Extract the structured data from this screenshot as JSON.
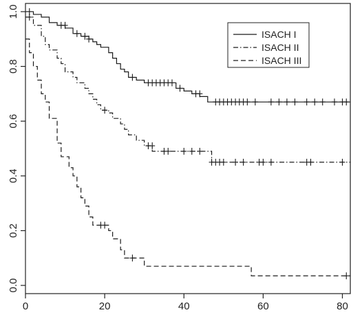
{
  "chart_data": {
    "type": "line",
    "subtype": "step",
    "title": "",
    "xlabel": "",
    "ylabel": "",
    "xlim": [
      0,
      82
    ],
    "ylim": [
      -0.03,
      1.03
    ],
    "x_ticks": [
      0,
      20,
      40,
      60,
      80
    ],
    "y_ticks": [
      0.0,
      0.2,
      0.4,
      0.6,
      0.8,
      1.0
    ],
    "x_tick_labels": [
      "0",
      "20",
      "40",
      "60",
      "80"
    ],
    "y_tick_labels": [
      "0.0",
      "0.2",
      "0.4",
      "0.6",
      "0.8",
      "1.0"
    ],
    "grid": false,
    "legend_position": "top-right",
    "series": [
      {
        "name": "ISACH I",
        "line_style": "solid",
        "steps": [
          [
            0,
            1.0
          ],
          [
            2,
            0.99
          ],
          [
            4,
            0.98
          ],
          [
            6,
            0.96
          ],
          [
            8,
            0.95
          ],
          [
            10,
            0.94
          ],
          [
            12,
            0.92
          ],
          [
            14,
            0.91
          ],
          [
            16,
            0.9
          ],
          [
            17,
            0.89
          ],
          [
            18,
            0.88
          ],
          [
            19,
            0.87
          ],
          [
            21,
            0.85
          ],
          [
            22,
            0.83
          ],
          [
            23,
            0.81
          ],
          [
            24,
            0.79
          ],
          [
            25,
            0.78
          ],
          [
            26,
            0.76
          ],
          [
            28,
            0.75
          ],
          [
            30,
            0.74
          ],
          [
            38,
            0.72
          ],
          [
            40,
            0.71
          ],
          [
            42,
            0.7
          ],
          [
            44,
            0.69
          ],
          [
            46,
            0.67
          ],
          [
            82,
            0.67
          ]
        ],
        "censored": [
          [
            1,
            1.0
          ],
          [
            9,
            0.95
          ],
          [
            10,
            0.95
          ],
          [
            13,
            0.92
          ],
          [
            15,
            0.91
          ],
          [
            16,
            0.9
          ],
          [
            27,
            0.76
          ],
          [
            31,
            0.74
          ],
          [
            32,
            0.74
          ],
          [
            33,
            0.74
          ],
          [
            34,
            0.74
          ],
          [
            35,
            0.74
          ],
          [
            36,
            0.74
          ],
          [
            37,
            0.74
          ],
          [
            39,
            0.72
          ],
          [
            43,
            0.7
          ],
          [
            44,
            0.7
          ],
          [
            48,
            0.67
          ],
          [
            49,
            0.67
          ],
          [
            50,
            0.67
          ],
          [
            51,
            0.67
          ],
          [
            52,
            0.67
          ],
          [
            53,
            0.67
          ],
          [
            54,
            0.67
          ],
          [
            55,
            0.67
          ],
          [
            56,
            0.67
          ],
          [
            58,
            0.67
          ],
          [
            62,
            0.67
          ],
          [
            64,
            0.67
          ],
          [
            66,
            0.67
          ],
          [
            68,
            0.67
          ],
          [
            71,
            0.67
          ],
          [
            73,
            0.67
          ],
          [
            75,
            0.67
          ],
          [
            78,
            0.67
          ],
          [
            80,
            0.67
          ],
          [
            81,
            0.67
          ]
        ]
      },
      {
        "name": "ISACH II",
        "line_style": "dotdash",
        "steps": [
          [
            0,
            0.98
          ],
          [
            2,
            0.95
          ],
          [
            4,
            0.91
          ],
          [
            5,
            0.88
          ],
          [
            6,
            0.86
          ],
          [
            8,
            0.83
          ],
          [
            9,
            0.81
          ],
          [
            10,
            0.78
          ],
          [
            12,
            0.76
          ],
          [
            13,
            0.74
          ],
          [
            15,
            0.72
          ],
          [
            16,
            0.7
          ],
          [
            17,
            0.68
          ],
          [
            18,
            0.66
          ],
          [
            19,
            0.64
          ],
          [
            21,
            0.63
          ],
          [
            22,
            0.61
          ],
          [
            24,
            0.59
          ],
          [
            25,
            0.57
          ],
          [
            26,
            0.55
          ],
          [
            28,
            0.53
          ],
          [
            30,
            0.51
          ],
          [
            32,
            0.49
          ],
          [
            47,
            0.45
          ],
          [
            82,
            0.45
          ]
        ],
        "censored": [
          [
            1,
            0.98
          ],
          [
            20,
            0.64
          ],
          [
            31,
            0.51
          ],
          [
            32,
            0.51
          ],
          [
            35,
            0.49
          ],
          [
            36,
            0.49
          ],
          [
            40,
            0.49
          ],
          [
            42,
            0.49
          ],
          [
            44,
            0.49
          ],
          [
            47,
            0.45
          ],
          [
            48,
            0.45
          ],
          [
            49,
            0.45
          ],
          [
            50,
            0.45
          ],
          [
            53,
            0.45
          ],
          [
            55,
            0.45
          ],
          [
            59,
            0.45
          ],
          [
            60,
            0.45
          ],
          [
            62,
            0.45
          ],
          [
            71,
            0.45
          ],
          [
            72,
            0.45
          ],
          [
            80,
            0.45
          ]
        ]
      },
      {
        "name": "ISACH III",
        "line_style": "dashed",
        "steps": [
          [
            0,
            0.9
          ],
          [
            1,
            0.85
          ],
          [
            2,
            0.8
          ],
          [
            3,
            0.75
          ],
          [
            4,
            0.7
          ],
          [
            5,
            0.67
          ],
          [
            6,
            0.61
          ],
          [
            8,
            0.52
          ],
          [
            9,
            0.47
          ],
          [
            11,
            0.43
          ],
          [
            12,
            0.4
          ],
          [
            13,
            0.36
          ],
          [
            14,
            0.32
          ],
          [
            15,
            0.29
          ],
          [
            16,
            0.25
          ],
          [
            17,
            0.22
          ],
          [
            21,
            0.2
          ],
          [
            22,
            0.17
          ],
          [
            24,
            0.13
          ],
          [
            25,
            0.1
          ],
          [
            30,
            0.07
          ],
          [
            57,
            0.035
          ],
          [
            82,
            0.035
          ]
        ],
        "censored": [
          [
            19,
            0.22
          ],
          [
            20,
            0.22
          ],
          [
            27,
            0.1
          ],
          [
            81,
            0.035
          ]
        ]
      }
    ]
  }
}
